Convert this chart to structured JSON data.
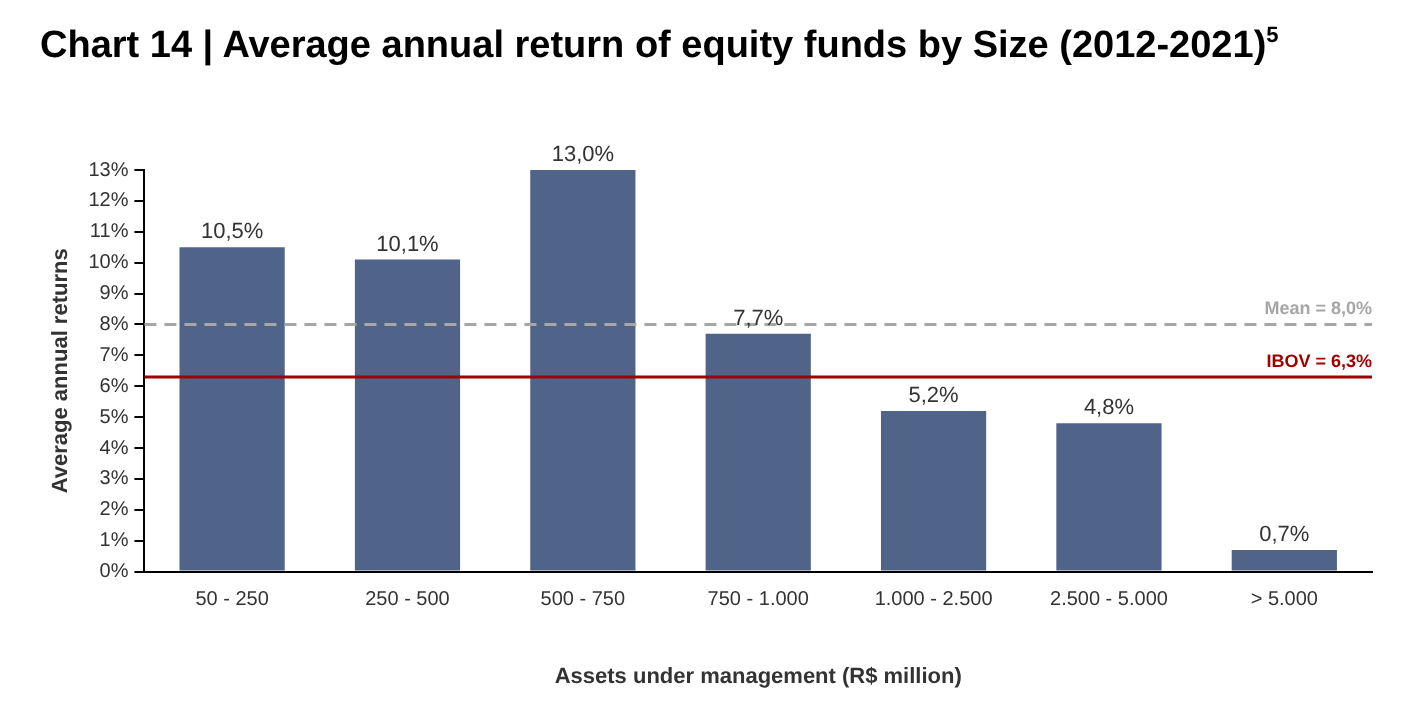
{
  "chart_data": {
    "type": "bar",
    "title": "Chart 14 | Average annual return of equity funds by Size (2012-2021)$^{5}$",
    "xlabel": "Assets under management (R$ million)",
    "ylabel": "Average annual returns",
    "categories": [
      "50 - 250",
      "250 - 500",
      "500 - 750",
      "750 - 1.000",
      "1.000 - 2.500",
      "2.500 - 5.000",
      "> 5.000"
    ],
    "values": [
      10.5,
      10.1,
      13.0,
      7.7,
      5.2,
      4.8,
      0.7
    ],
    "value_labels": [
      "10,5%",
      "10,1%",
      "13,0%",
      "7,7%",
      "5,2%",
      "4,8%",
      "0,7%"
    ],
    "color": "#4f6488",
    "ylim": [
      0,
      13
    ],
    "yticks": [
      {
        "value": 0,
        "label": "0%"
      },
      {
        "value": 1,
        "label": "1%"
      },
      {
        "value": 2,
        "label": "2%"
      },
      {
        "value": 3,
        "label": "3%"
      },
      {
        "value": 4,
        "label": "4%"
      },
      {
        "value": 5,
        "label": "5%"
      },
      {
        "value": 6,
        "label": "6%"
      },
      {
        "value": 7,
        "label": "7%"
      },
      {
        "value": 8,
        "label": "8%"
      },
      {
        "value": 9,
        "label": "9%"
      },
      {
        "value": 10,
        "label": "10%"
      },
      {
        "value": 11,
        "label": "11%"
      },
      {
        "value": 12,
        "label": "12%"
      },
      {
        "value": 13,
        "label": "13%"
      }
    ],
    "ref_lines": [
      {
        "axis": "y",
        "value": 8.0,
        "label": "Mean = 8,0%",
        "color": "#a6a6a6",
        "line_style": "dashed"
      },
      {
        "axis": "y",
        "value": 6.3,
        "label": "IBOV = 6,3%",
        "color": "#a00000",
        "line_style": "solid"
      }
    ],
    "grid": false,
    "legend": false
  }
}
